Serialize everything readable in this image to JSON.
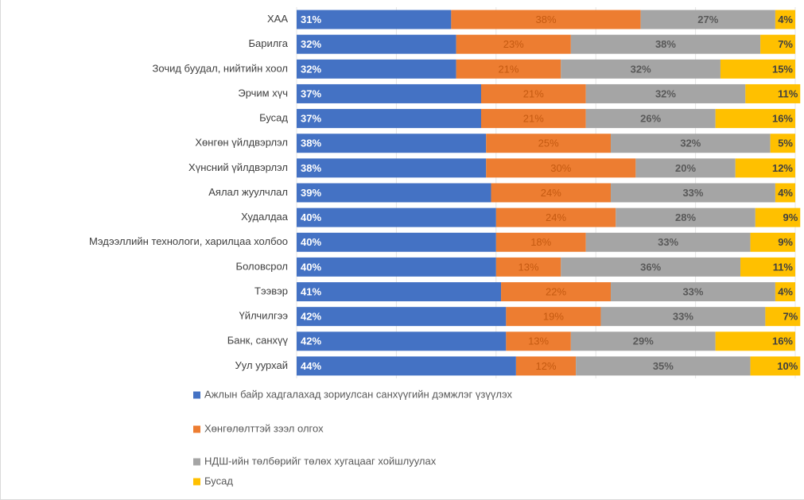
{
  "chart_data": {
    "type": "stacked-bar-horizontal",
    "categories": [
      "ХАА",
      "Барилга",
      "Зочид буудал, нийтийн хоол",
      "Эрчим хүч",
      "Бусад",
      "Хөнгөн үйлдвэрлэл",
      "Хүнсний үйлдвэрлэл",
      "Аялал жуулчлал",
      "Худалдаа",
      "Мэдээллийн технологи, харилцаа холбоо",
      "Боловсрол",
      "Тээвэр",
      "Үйлчилгээ",
      "Банк, санхүү",
      "Уул уурхай"
    ],
    "series": [
      {
        "name": "Ажлын байр хадгалахад зориулсан санхүүгийн дэмжлэг үзүүлэх",
        "color": "#4472c4",
        "values": [
          31,
          32,
          32,
          37,
          37,
          38,
          38,
          39,
          40,
          40,
          40,
          41,
          42,
          42,
          44
        ],
        "value_labels": [
          "31%",
          "32%",
          "32%",
          "37%",
          "37%",
          "38%",
          "38%",
          "39%",
          "40%",
          "40%",
          "40%",
          "41%",
          "42%",
          "42%",
          "44%"
        ]
      },
      {
        "name": "Хөнгөлөлттэй зээл олгох",
        "color": "#ed7d31",
        "values": [
          38,
          23,
          21,
          21,
          21,
          25,
          30,
          24,
          24,
          18,
          13,
          22,
          19,
          13,
          12
        ],
        "value_labels": [
          "38%",
          "23%",
          "21%",
          "21%",
          "21%",
          "25%",
          "30%",
          "24%",
          "24%",
          "18%",
          "13%",
          "22%",
          "19%",
          "13%",
          "12%"
        ]
      },
      {
        "name": "НДШ-ийн төлбөрийг төлөх хугацааг хойшлуулах",
        "color": "#a5a5a5",
        "values": [
          27,
          38,
          32,
          32,
          26,
          32,
          20,
          33,
          28,
          33,
          36,
          33,
          33,
          29,
          35
        ],
        "value_labels": [
          "27%",
          "38%",
          "32%",
          "32%",
          "26%",
          "32%",
          "20%",
          "33%",
          "28%",
          "33%",
          "36%",
          "33%",
          "33%",
          "29%",
          "35%"
        ]
      },
      {
        "name": "Бусад",
        "color": "#ffc000",
        "values": [
          4,
          7,
          15,
          11,
          16,
          5,
          12,
          4,
          9,
          9,
          11,
          4,
          7,
          16,
          10
        ],
        "value_labels": [
          "4%",
          "7%",
          "15%",
          "11%",
          "16%",
          "5%",
          "12%",
          "4%",
          "9%",
          "9%",
          "11%",
          "4%",
          "7%",
          "16%",
          "10%"
        ]
      }
    ],
    "xlim": [
      0,
      100
    ],
    "xticks": [
      0,
      20,
      40,
      60,
      80,
      100
    ],
    "grid": true
  }
}
